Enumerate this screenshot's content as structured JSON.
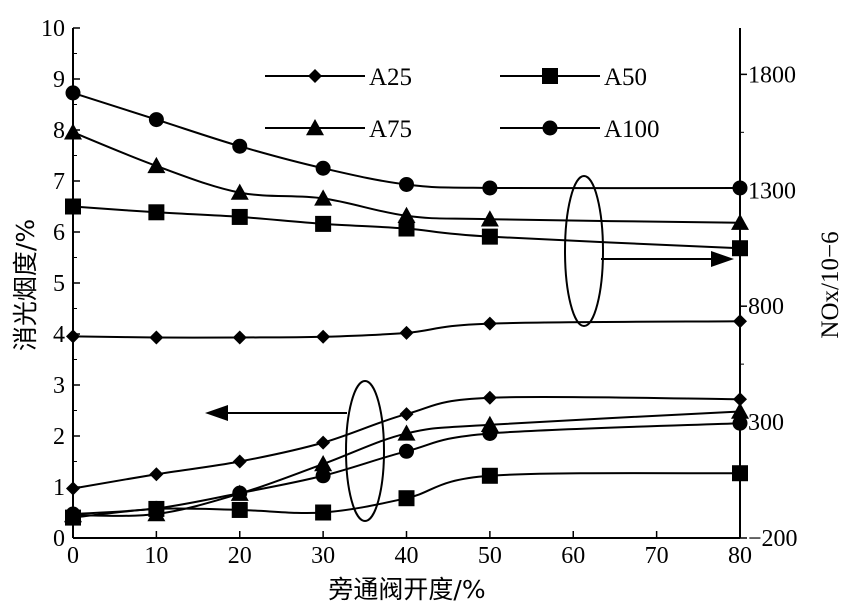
{
  "chart_data": {
    "type": "line",
    "xlabel": "旁通阀开度/%",
    "ylabel_left": "消光烟度/%",
    "ylabel_right": "NOx/10−6",
    "x": [
      0,
      10,
      20,
      30,
      40,
      50,
      80
    ],
    "xlim": [
      0,
      80
    ],
    "xticks": [
      "0",
      "10",
      "20",
      "30",
      "40",
      "50",
      "60",
      "70",
      "80"
    ],
    "ylim_left": [
      0,
      10
    ],
    "yticks_left": [
      "0",
      "1",
      "2",
      "3",
      "4",
      "5",
      "6",
      "7",
      "8",
      "9",
      "10"
    ],
    "ylim_right": [
      -200,
      2000
    ],
    "yticks_right": [
      "−200",
      "300",
      "800",
      "1300",
      "1800"
    ],
    "legend": [
      "A25",
      "A50",
      "A75",
      "A100"
    ],
    "smoke_series": [
      {
        "name": "A25",
        "marker": "diamond",
        "values": [
          0.97,
          1.25,
          1.5,
          1.87,
          2.43,
          2.75,
          2.72
        ]
      },
      {
        "name": "A50",
        "marker": "square",
        "values": [
          0.4,
          0.57,
          0.55,
          0.5,
          0.78,
          1.22,
          1.27
        ]
      },
      {
        "name": "A75",
        "marker": "triangle",
        "values": [
          0.45,
          0.47,
          0.87,
          1.45,
          2.05,
          2.22,
          2.48
        ]
      },
      {
        "name": "A100",
        "marker": "circle",
        "values": [
          0.47,
          0.58,
          0.88,
          1.22,
          1.7,
          2.05,
          2.25
        ]
      }
    ],
    "nox_series": [
      {
        "name": "A25",
        "marker": "diamond",
        "values": [
          670,
          665,
          665,
          668,
          685,
          725,
          735
        ]
      },
      {
        "name": "A50",
        "marker": "square",
        "values": [
          1230,
          1205,
          1185,
          1155,
          1135,
          1100,
          1050
        ]
      },
      {
        "name": "A75",
        "marker": "triangle",
        "values": [
          1550,
          1405,
          1290,
          1265,
          1190,
          1175,
          1160
        ]
      },
      {
        "name": "A100",
        "marker": "circle",
        "values": [
          1720,
          1605,
          1490,
          1395,
          1325,
          1310,
          1310
        ]
      }
    ]
  }
}
